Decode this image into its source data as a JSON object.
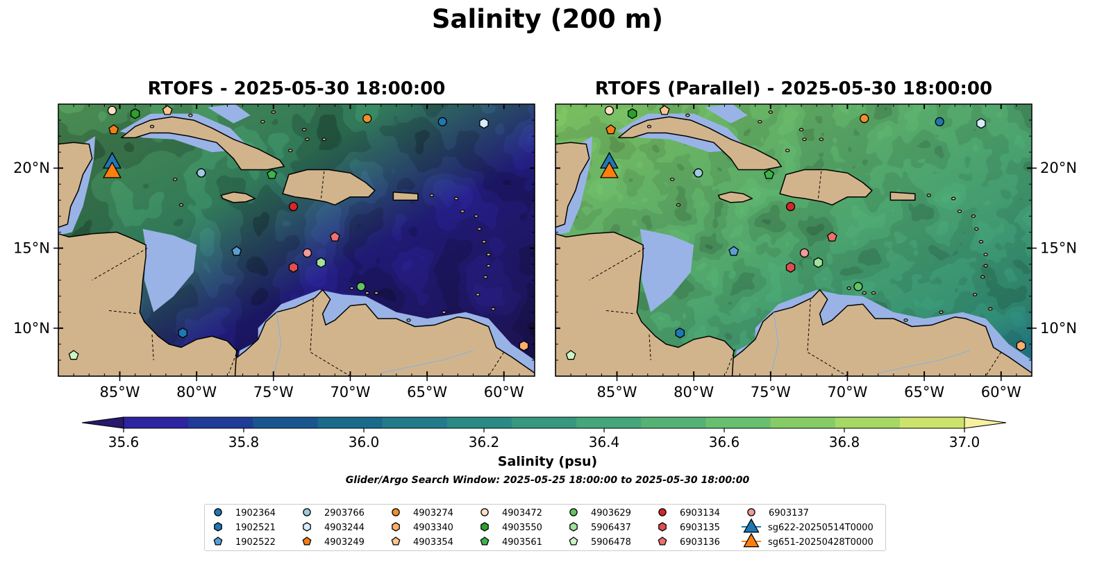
{
  "title": "Salinity (200 m)",
  "panels": [
    {
      "title": "RTOFS - 2025-05-30 18:00:00",
      "field": "strong"
    },
    {
      "title": "RTOFS (Parallel) - 2025-05-30 18:00:00",
      "field": "smooth"
    }
  ],
  "map_extent": {
    "lon": [
      -89,
      -58
    ],
    "lat": [
      7,
      24
    ]
  },
  "lon_ticks": [
    "85°W",
    "80°W",
    "75°W",
    "70°W",
    "65°W",
    "60°W"
  ],
  "lat_ticks": [
    "10°N",
    "15°N",
    "20°N"
  ],
  "colorbar": {
    "label": "Salinity (psu)",
    "ticks": [
      "35.6",
      "35.8",
      "36.0",
      "36.2",
      "36.4",
      "36.6",
      "36.8",
      "37.0"
    ],
    "colors": [
      "#27196b",
      "#2c24a0",
      "#1f3c98",
      "#19558f",
      "#1a6a8c",
      "#217b8b",
      "#2a8a86",
      "#36987e",
      "#44a67a",
      "#55b275",
      "#68bf6f",
      "#85cc66",
      "#a5d865",
      "#cce36b",
      "#f6f0a0"
    ]
  },
  "search_window": "Glider/Argo Search Window: 2025-05-25 18:00:00 to 2025-05-30 18:00:00",
  "colors": {
    "land": "#d2b48c",
    "shallow": "#99b3e6",
    "coast": "#000000"
  },
  "platforms": [
    {
      "id": "1902364",
      "marker": "circle",
      "color": "#1f77b4",
      "lon": -64.0,
      "lat": 22.9
    },
    {
      "id": "1902521",
      "marker": "hexagon",
      "color": "#1f77b4",
      "lon": -80.9,
      "lat": 9.7
    },
    {
      "id": "1902522",
      "marker": "pentagon",
      "color": "#5a9fd4",
      "lon": -77.4,
      "lat": 14.8
    },
    {
      "id": "2903766",
      "marker": "circle",
      "color": "#9ecae1",
      "lon": -79.7,
      "lat": 19.7
    },
    {
      "id": "4903244",
      "marker": "hexagon",
      "color": "#d6ecf8",
      "lon": -61.3,
      "lat": 22.8
    },
    {
      "id": "4903249",
      "marker": "pentagon",
      "color": "#f57d15",
      "lon": -85.4,
      "lat": 22.4
    },
    {
      "id": "4903274",
      "marker": "circle",
      "color": "#f28e2b",
      "lon": -68.9,
      "lat": 23.1
    },
    {
      "id": "4903340",
      "marker": "hexagon",
      "color": "#fdae6b",
      "lon": -58.7,
      "lat": 8.9
    },
    {
      "id": "4903354",
      "marker": "pentagon",
      "color": "#fdc58f",
      "lon": -81.9,
      "lat": 23.6
    },
    {
      "id": "4903472",
      "marker": "circle",
      "color": "#fde0c5",
      "lon": -85.5,
      "lat": 23.6
    },
    {
      "id": "4903550",
      "marker": "hexagon",
      "color": "#2ca02c",
      "lon": -84.0,
      "lat": 23.4
    },
    {
      "id": "4903561",
      "marker": "pentagon",
      "color": "#3cb44b",
      "lon": -75.1,
      "lat": 19.6
    },
    {
      "id": "4903629",
      "marker": "circle",
      "color": "#62c462",
      "lon": -69.3,
      "lat": 12.6
    },
    {
      "id": "5906437",
      "marker": "hexagon",
      "color": "#a1e29a",
      "lon": -71.9,
      "lat": 14.1
    },
    {
      "id": "5906478",
      "marker": "pentagon",
      "color": "#ccf5c5",
      "lon": -88.0,
      "lat": 8.3
    },
    {
      "id": "6903134",
      "marker": "circle",
      "color": "#d62728",
      "lon": -73.7,
      "lat": 17.6
    },
    {
      "id": "6903135",
      "marker": "hexagon",
      "color": "#e04f4f",
      "lon": -73.7,
      "lat": 13.8
    },
    {
      "id": "6903136",
      "marker": "pentagon",
      "color": "#ef6f6f",
      "lon": -71.0,
      "lat": 15.7
    },
    {
      "id": "6903137",
      "marker": "circle",
      "color": "#f09a9a",
      "lon": -72.8,
      "lat": 14.7
    },
    {
      "id": "sg622-20250514T0000",
      "marker": "triangle",
      "color": "#1f77b4",
      "lon": -85.5,
      "lat": 20.4
    },
    {
      "id": "sg651-20250428T0000",
      "marker": "triangle",
      "color": "#ff7f0e",
      "lon": -85.5,
      "lat": 19.8
    }
  ]
}
